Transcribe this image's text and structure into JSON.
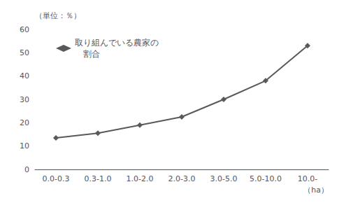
{
  "chart_data": {
    "type": "line",
    "categories": [
      "0.0-0.3",
      "0.3-1.0",
      "1.0-2.0",
      "2.0-3.0",
      "3.0-5.0",
      "5.0-10.0",
      "10.0-"
    ],
    "series": [
      {
        "name": "取り組んでいる農家の\n　割合",
        "color": "#595959",
        "marker": "diamond",
        "values": [
          13.5,
          15.5,
          19.0,
          22.5,
          30.0,
          38.0,
          53.0
        ]
      }
    ],
    "y_label": "（単位：％）",
    "x_label": "（ha）",
    "ylim": [
      0,
      60
    ],
    "yticks": [
      0,
      10,
      20,
      30,
      40,
      50,
      60
    ],
    "grid": false,
    "legend": "upper left"
  }
}
